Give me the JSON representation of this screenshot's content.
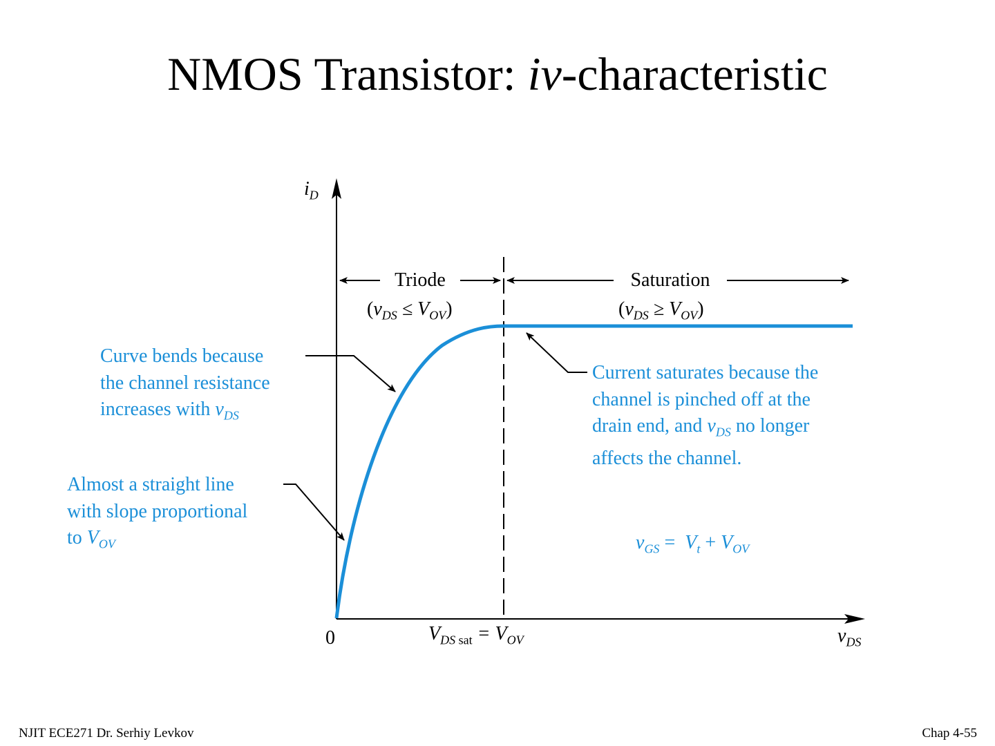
{
  "slide": {
    "title_main": "NMOS Transistor: ",
    "title_ital": "iv",
    "title_rest": "-characteristic"
  },
  "diagram": {
    "y_axis_label_main": "i",
    "y_axis_label_sub": "D",
    "x_axis_label_main": "v",
    "x_axis_label_sub": "DS",
    "origin_label": "0",
    "vdssat_label": {
      "v": "V",
      "sub": "DS",
      "sat": "sat",
      "eq": " = V",
      "ov": "OV"
    },
    "triode": {
      "label": "Triode",
      "cond_open": "(",
      "cond_v": "v",
      "cond_ds": "DS",
      "cond_op": " ≤ V",
      "cond_ov": "OV",
      "cond_close": ")"
    },
    "saturation": {
      "label": "Saturation",
      "cond_open": "(",
      "cond_v": "v",
      "cond_ds": "DS",
      "cond_op": " ≥ V",
      "cond_ov": "OV",
      "cond_close": ")"
    },
    "curve_color": "#1b8fd8"
  },
  "annotations": {
    "curve_bends": {
      "line1": "Curve bends because",
      "line2": "the channel resistance",
      "line3_pre": "increases with ",
      "line3_v": "v",
      "line3_sub": "DS"
    },
    "straight_line": {
      "line1": "Almost a straight line",
      "line2": "with slope proportional",
      "line3_pre": "to ",
      "line3_v": "V",
      "line3_sub": "OV"
    },
    "current_saturates": {
      "line1": "Current saturates because the",
      "line2": "channel is pinched off at the",
      "line3_pre": "drain end, and ",
      "line3_v": "v",
      "line3_sub": "DS",
      "line3_post": " no longer",
      "line4": "affects the channel."
    },
    "vgs_equation": {
      "v": "v",
      "gs": "GS",
      "eq": " =  ",
      "vt": "V",
      "t": "t",
      "plus": " + ",
      "vov": "V",
      "ov": "OV"
    }
  },
  "footer": {
    "left": "NJIT  ECE271 Dr. Serhiy Levkov",
    "right": "Chap 4-55"
  }
}
